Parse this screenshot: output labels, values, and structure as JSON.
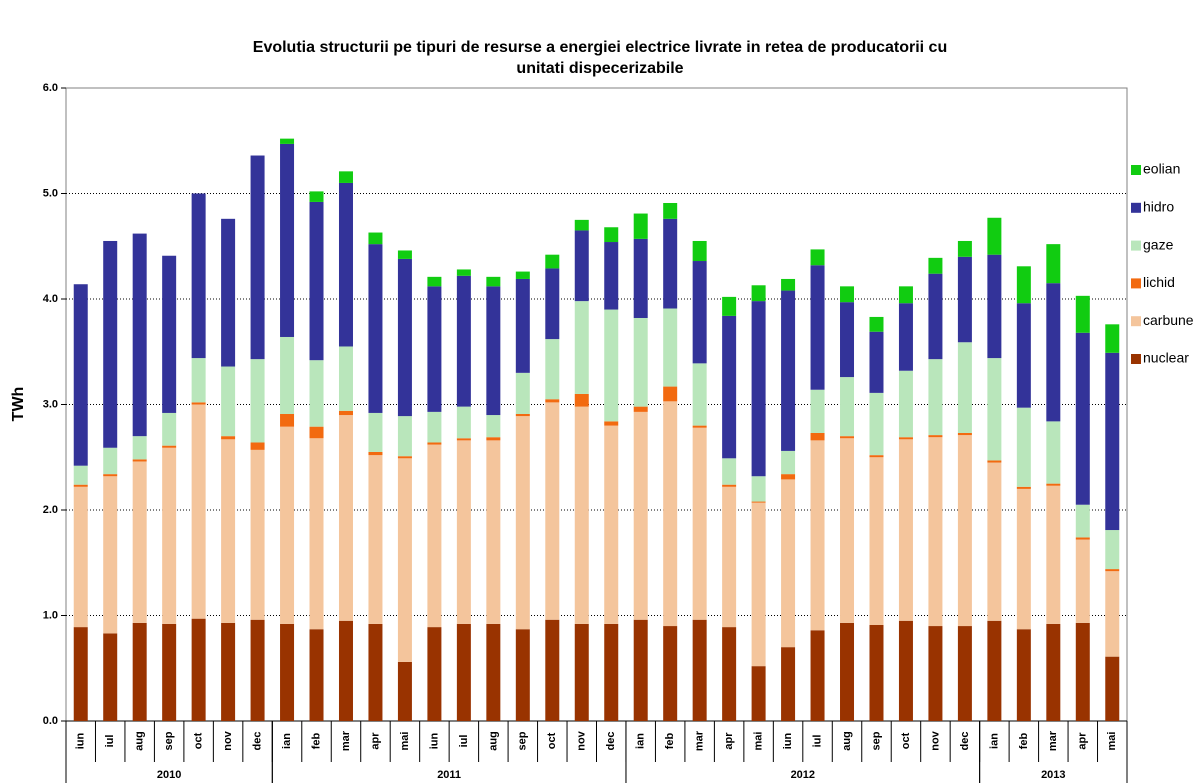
{
  "chart_data": {
    "type": "stacked-bar",
    "title": [
      "Evolutia structurii pe tipuri de resurse a energiei electrice livrate in retea de producatorii cu",
      "unitati dispecerizabile"
    ],
    "y_label": "TWh",
    "groups": [
      {
        "label": "2010",
        "categories": [
          "iun",
          "iul",
          "aug",
          "sep",
          "oct",
          "nov",
          "dec"
        ]
      },
      {
        "label": "2011",
        "categories": [
          "ian",
          "feb",
          "mar",
          "apr",
          "mai",
          "iun",
          "iul",
          "aug",
          "sep",
          "oct",
          "nov",
          "dec"
        ]
      },
      {
        "label": "2012",
        "categories": [
          "ian",
          "feb",
          "mar",
          "apr",
          "mai",
          "iun",
          "iul",
          "aug",
          "sep",
          "oct",
          "nov",
          "dec"
        ]
      },
      {
        "label": "2013",
        "categories": [
          "ian",
          "feb",
          "mar",
          "apr",
          "mai"
        ]
      }
    ],
    "series": [
      {
        "name": "nuclear",
        "color": "#993300",
        "values": [
          0.89,
          0.83,
          0.93,
          0.92,
          0.97,
          0.93,
          0.96,
          0.92,
          0.87,
          0.95,
          0.92,
          0.56,
          0.89,
          0.92,
          0.92,
          0.87,
          0.96,
          0.92,
          0.92,
          0.96,
          0.9,
          0.96,
          0.89,
          0.52,
          0.7,
          0.86,
          0.93,
          0.91,
          0.95,
          0.9,
          0.9,
          0.95,
          0.87,
          0.92,
          0.93,
          0.61
        ]
      },
      {
        "name": "carbune",
        "color": "#f4c59c",
        "values": [
          1.33,
          1.49,
          1.53,
          1.67,
          2.03,
          1.74,
          1.61,
          1.87,
          1.81,
          1.95,
          1.6,
          1.93,
          1.73,
          1.74,
          1.74,
          2.02,
          2.06,
          2.06,
          1.88,
          1.97,
          2.13,
          1.82,
          1.33,
          1.55,
          1.59,
          1.8,
          1.75,
          1.59,
          1.72,
          1.79,
          1.81,
          1.5,
          1.33,
          1.31,
          0.79,
          0.81
        ]
      },
      {
        "name": "lichid",
        "color": "#f26a10",
        "values": [
          0.02,
          0.02,
          0.02,
          0.02,
          0.02,
          0.03,
          0.07,
          0.12,
          0.11,
          0.04,
          0.03,
          0.02,
          0.02,
          0.02,
          0.03,
          0.02,
          0.03,
          0.12,
          0.04,
          0.05,
          0.14,
          0.02,
          0.02,
          0.01,
          0.05,
          0.07,
          0.02,
          0.02,
          0.02,
          0.02,
          0.02,
          0.02,
          0.02,
          0.02,
          0.02,
          0.02
        ]
      },
      {
        "name": "gaze",
        "color": "#b9e6bb",
        "values": [
          0.18,
          0.25,
          0.22,
          0.31,
          0.42,
          0.66,
          0.79,
          0.73,
          0.63,
          0.61,
          0.37,
          0.38,
          0.29,
          0.3,
          0.21,
          0.39,
          0.57,
          0.88,
          1.06,
          0.84,
          0.74,
          0.59,
          0.25,
          0.24,
          0.22,
          0.41,
          0.56,
          0.59,
          0.63,
          0.72,
          0.86,
          0.97,
          0.75,
          0.59,
          0.31,
          0.37
        ]
      },
      {
        "name": "hidro",
        "color": "#333399",
        "values": [
          1.72,
          1.96,
          1.92,
          1.49,
          1.56,
          1.4,
          1.93,
          1.83,
          1.5,
          1.55,
          1.6,
          1.49,
          1.19,
          1.24,
          1.22,
          0.89,
          0.67,
          0.67,
          0.64,
          0.75,
          0.85,
          0.97,
          1.35,
          1.66,
          1.52,
          1.18,
          0.71,
          0.58,
          0.64,
          0.81,
          0.81,
          0.98,
          0.99,
          1.31,
          1.63,
          1.68
        ]
      },
      {
        "name": "eolian",
        "color": "#11cc11",
        "values": [
          0,
          0,
          0,
          0,
          0,
          0,
          0,
          0.05,
          0.1,
          0.11,
          0.11,
          0.08,
          0.09,
          0.06,
          0.09,
          0.07,
          0.13,
          0.1,
          0.14,
          0.24,
          0.15,
          0.19,
          0.18,
          0.15,
          0.11,
          0.15,
          0.15,
          0.14,
          0.16,
          0.15,
          0.15,
          0.35,
          0.35,
          0.37,
          0.35,
          0.27
        ]
      }
    ],
    "ylim": [
      0,
      6
    ],
    "yticks": [
      {
        "value": 0,
        "label": "0.0"
      },
      {
        "value": 1,
        "label": "1.0"
      },
      {
        "value": 2,
        "label": "2.0"
      },
      {
        "value": 3,
        "label": "3.0"
      },
      {
        "value": 4,
        "label": "4.0"
      },
      {
        "value": 5,
        "label": "5.0"
      },
      {
        "value": 6,
        "label": "6.0"
      }
    ],
    "grid": true,
    "legend": "right"
  }
}
